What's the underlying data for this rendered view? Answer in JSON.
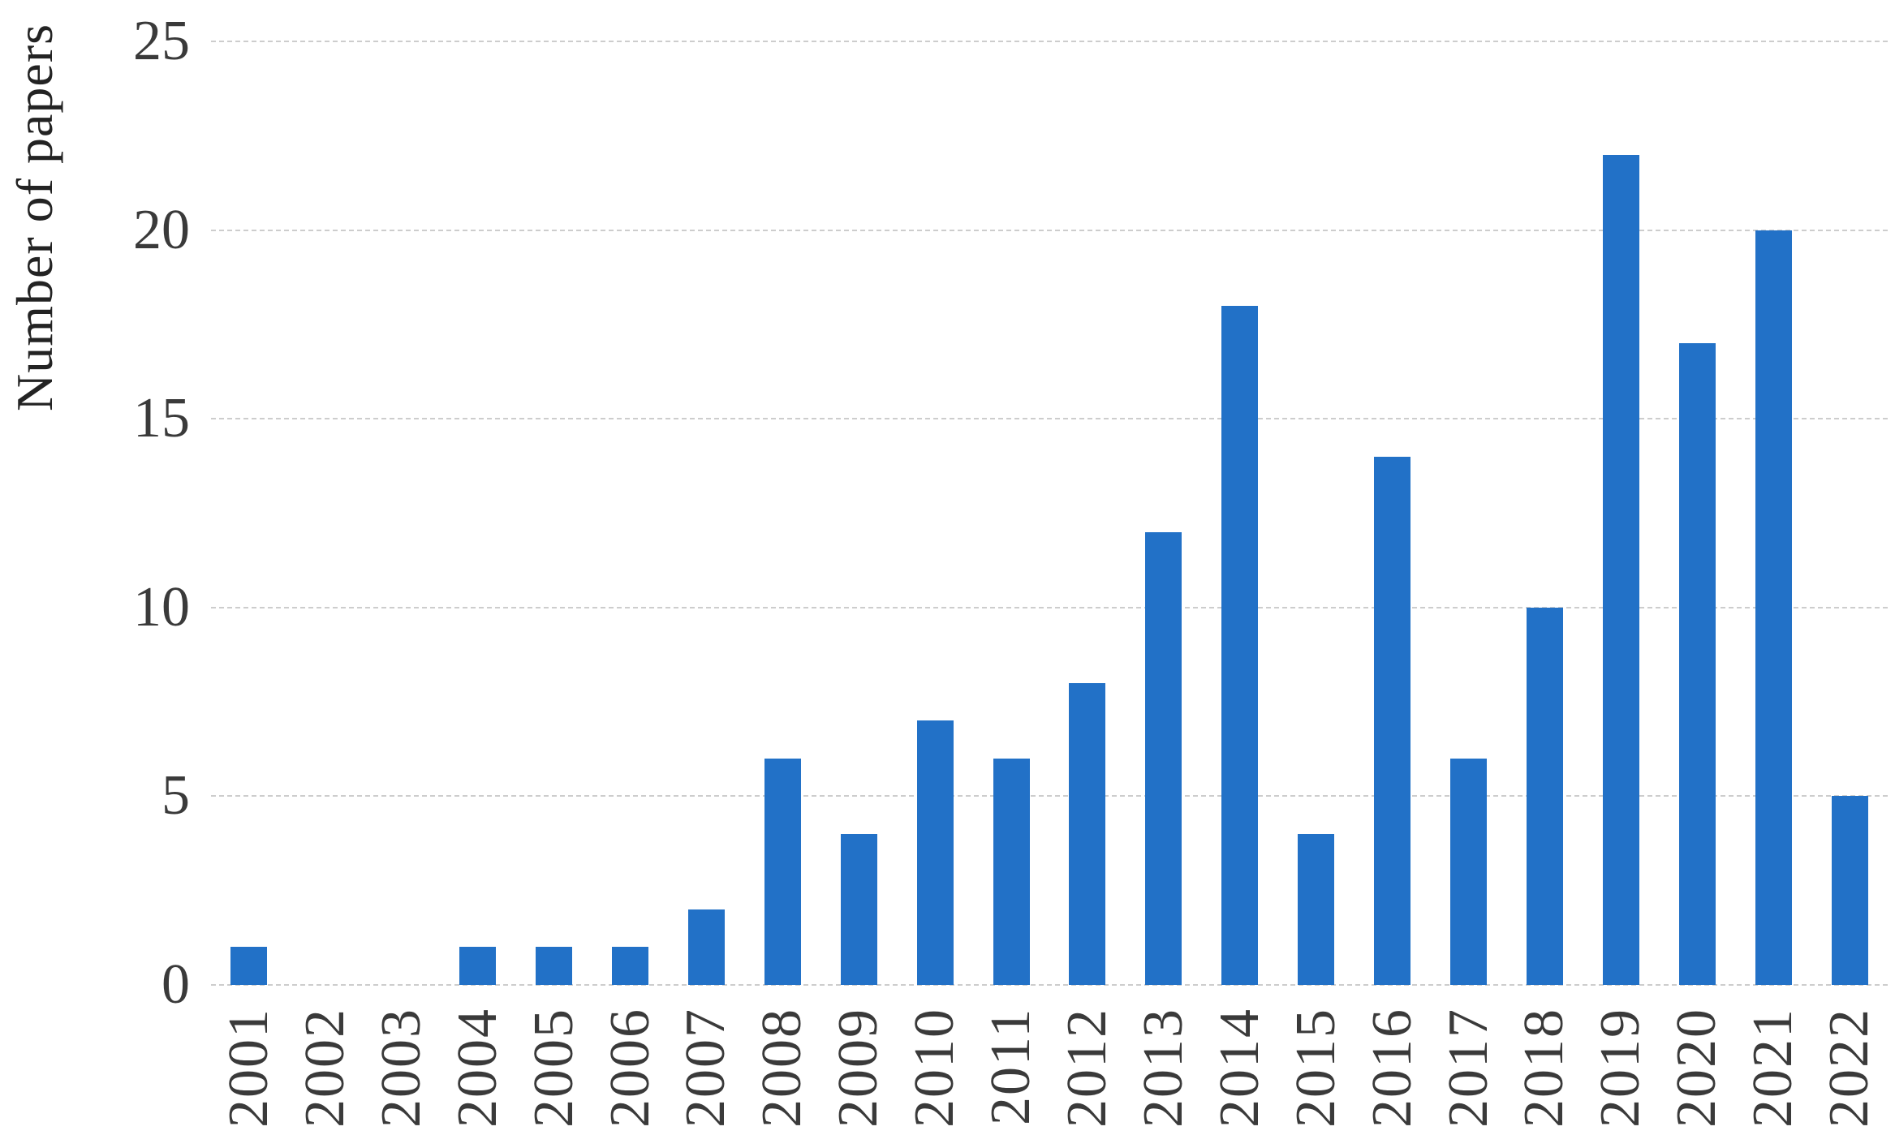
{
  "chart_data": {
    "type": "bar",
    "title": "",
    "xlabel": "",
    "ylabel": "Number of papers",
    "categories": [
      "2001",
      "2002",
      "2003",
      "2004",
      "2005",
      "2006",
      "2007",
      "2008",
      "2009",
      "2010",
      "2011",
      "2012",
      "2013",
      "2014",
      "2015",
      "2016",
      "2017",
      "2018",
      "2019",
      "2020",
      "2021",
      "2022"
    ],
    "values": [
      1,
      0,
      0,
      1,
      1,
      1,
      2,
      6,
      4,
      7,
      6,
      8,
      12,
      18,
      4,
      14,
      6,
      10,
      22,
      17,
      20,
      5
    ],
    "ylim": [
      0,
      25
    ],
    "yticks": [
      0,
      5,
      10,
      15,
      20,
      25
    ],
    "grid": "horizontal-dashed",
    "legend_position": "none",
    "colors": {
      "bar": "#2271C7",
      "gridline": "#CDCDCD",
      "tick_text": "#3A3A3A",
      "axis_title_text": "#232323",
      "background": "#FFFFFF"
    }
  }
}
